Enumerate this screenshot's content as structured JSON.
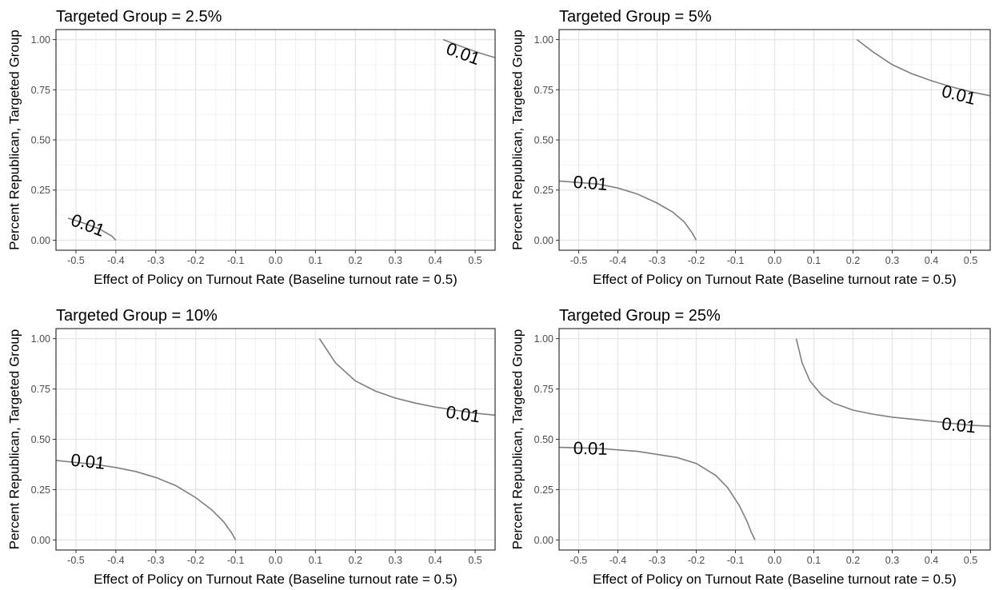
{
  "chart_data": [
    {
      "type": "line",
      "title": "Targeted Group = 2.5%",
      "xlabel": "Effect of Policy on Turnout Rate (Baseline turnout rate = 0.5)",
      "ylabel": "Percent Republican, Targeted Group",
      "xlim": [
        -0.55,
        0.55
      ],
      "ylim": [
        -0.05,
        1.05
      ],
      "xticks": [
        "-0.5",
        "-0.4",
        "-0.3",
        "-0.2",
        "-0.1",
        "0.0",
        "0.1",
        "0.2",
        "0.3",
        "0.4",
        "0.5"
      ],
      "yticks": [
        "0.00",
        "0.25",
        "0.50",
        "0.75",
        "1.00"
      ],
      "grid": true,
      "contour_level": "0.01",
      "series": [
        {
          "x": [
            -0.52,
            -0.48,
            -0.44,
            -0.41,
            -0.4
          ],
          "y": [
            0.11,
            0.085,
            0.055,
            0.02,
            0.0
          ],
          "label_at": [
            -0.47,
            0.075
          ]
        },
        {
          "x": [
            0.42,
            0.45,
            0.48,
            0.51,
            0.55
          ],
          "y": [
            1.0,
            0.977,
            0.955,
            0.934,
            0.91
          ],
          "label_at": [
            0.47,
            0.93
          ]
        }
      ]
    },
    {
      "type": "line",
      "title": "Targeted Group = 5%",
      "xlabel": "Effect of Policy on Turnout Rate (Baseline turnout rate = 0.5)",
      "ylabel": "Percent Republican, Targeted Group",
      "xlim": [
        -0.55,
        0.55
      ],
      "ylim": [
        -0.05,
        1.05
      ],
      "xticks": [
        "-0.5",
        "-0.4",
        "-0.3",
        "-0.2",
        "-0.1",
        "0.0",
        "0.1",
        "0.2",
        "0.3",
        "0.4",
        "0.5"
      ],
      "yticks": [
        "0.00",
        "0.25",
        "0.50",
        "0.75",
        "1.00"
      ],
      "grid": true,
      "contour_level": "0.01",
      "series": [
        {
          "x": [
            -0.55,
            -0.45,
            -0.4,
            -0.35,
            -0.3,
            -0.26,
            -0.23,
            -0.21,
            -0.2
          ],
          "y": [
            0.295,
            0.28,
            0.26,
            0.23,
            0.185,
            0.14,
            0.09,
            0.035,
            0.0
          ],
          "label_at": [
            -0.47,
            0.285
          ]
        },
        {
          "x": [
            0.21,
            0.25,
            0.3,
            0.35,
            0.4,
            0.45,
            0.5,
            0.55
          ],
          "y": [
            1.0,
            0.94,
            0.875,
            0.83,
            0.795,
            0.765,
            0.74,
            0.72
          ],
          "label_at": [
            0.47,
            0.725
          ]
        }
      ]
    },
    {
      "type": "line",
      "title": "Targeted Group = 10%",
      "xlabel": "Effect of Policy on Turnout Rate (Baseline turnout rate = 0.5)",
      "ylabel": "Percent Republican, Targeted Group",
      "xlim": [
        -0.55,
        0.55
      ],
      "ylim": [
        -0.05,
        1.05
      ],
      "xticks": [
        "-0.5",
        "-0.4",
        "-0.3",
        "-0.2",
        "-0.1",
        "0.0",
        "0.1",
        "0.2",
        "0.3",
        "0.4",
        "0.5"
      ],
      "yticks": [
        "0.00",
        "0.25",
        "0.50",
        "0.75",
        "1.00"
      ],
      "grid": true,
      "contour_level": "0.01",
      "series": [
        {
          "x": [
            -0.55,
            -0.5,
            -0.45,
            -0.4,
            -0.35,
            -0.3,
            -0.25,
            -0.2,
            -0.16,
            -0.13,
            -0.11,
            -0.1
          ],
          "y": [
            0.395,
            0.385,
            0.375,
            0.36,
            0.34,
            0.31,
            0.27,
            0.21,
            0.15,
            0.09,
            0.035,
            0.0
          ],
          "label_at": [
            -0.47,
            0.39
          ]
        },
        {
          "x": [
            0.11,
            0.15,
            0.2,
            0.25,
            0.3,
            0.35,
            0.4,
            0.45,
            0.5,
            0.55
          ],
          "y": [
            1.0,
            0.88,
            0.79,
            0.74,
            0.705,
            0.68,
            0.66,
            0.645,
            0.63,
            0.62
          ],
          "label_at": [
            0.47,
            0.625
          ]
        }
      ]
    },
    {
      "type": "line",
      "title": "Targeted Group = 25%",
      "xlabel": "Effect of Policy on Turnout Rate (Baseline turnout rate = 0.5)",
      "ylabel": "Percent Republican, Targeted Group",
      "xlim": [
        -0.55,
        0.55
      ],
      "ylim": [
        -0.05,
        1.05
      ],
      "xticks": [
        "-0.5",
        "-0.4",
        "-0.3",
        "-0.2",
        "-0.1",
        "0.0",
        "0.1",
        "0.2",
        "0.3",
        "0.4",
        "0.5"
      ],
      "yticks": [
        "0.00",
        "0.25",
        "0.50",
        "0.75",
        "1.00"
      ],
      "grid": true,
      "contour_level": "0.01",
      "series": [
        {
          "x": [
            -0.55,
            -0.45,
            -0.35,
            -0.25,
            -0.2,
            -0.15,
            -0.12,
            -0.09,
            -0.07,
            -0.06,
            -0.05
          ],
          "y": [
            0.46,
            0.455,
            0.44,
            0.41,
            0.38,
            0.32,
            0.26,
            0.17,
            0.09,
            0.04,
            0.0
          ],
          "label_at": [
            -0.47,
            0.455
          ]
        },
        {
          "x": [
            0.055,
            0.07,
            0.09,
            0.12,
            0.15,
            0.2,
            0.25,
            0.3,
            0.35,
            0.4,
            0.45,
            0.5,
            0.55
          ],
          "y": [
            1.0,
            0.88,
            0.79,
            0.72,
            0.68,
            0.645,
            0.625,
            0.61,
            0.6,
            0.59,
            0.58,
            0.57,
            0.565
          ],
          "label_at": [
            0.47,
            0.57
          ]
        }
      ]
    }
  ]
}
